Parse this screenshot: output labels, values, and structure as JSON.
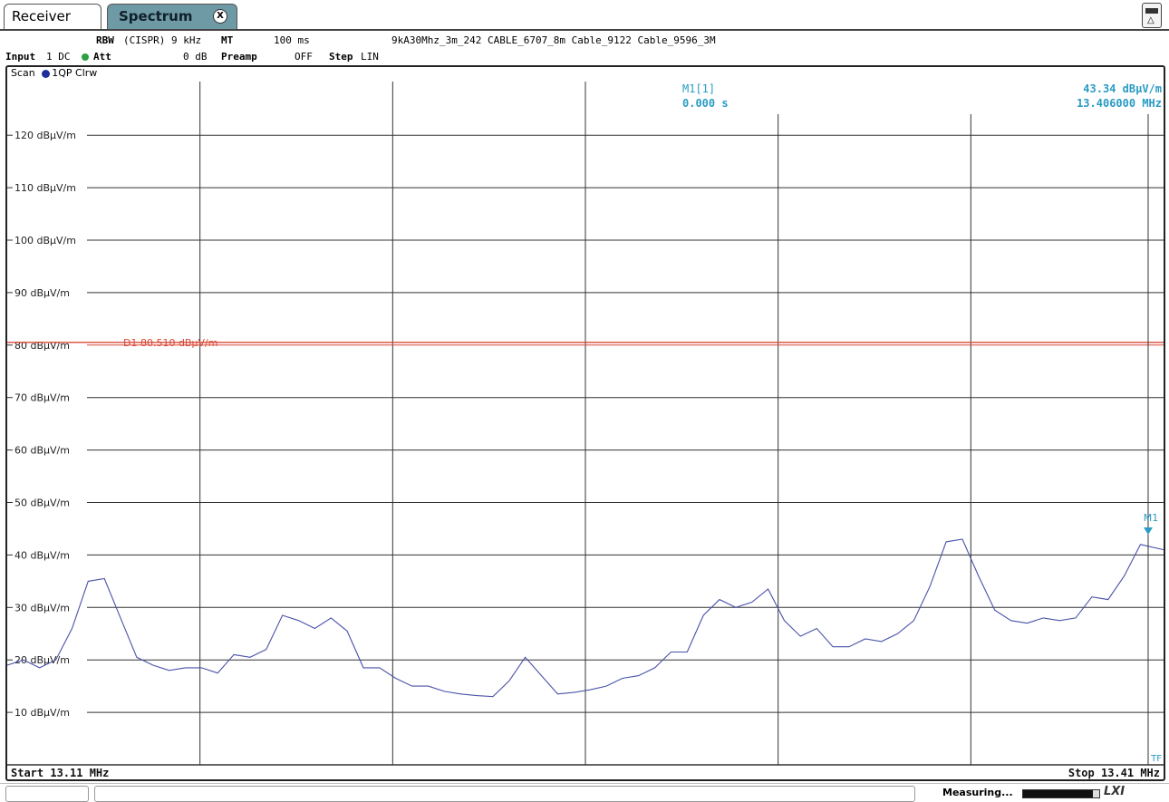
{
  "tabs": {
    "receiver": "Receiver",
    "spectrum": "Spectrum",
    "close_glyph": "X"
  },
  "params": {
    "rbw_key": "RBW",
    "rbw_value": "(CISPR) 9 kHz",
    "mt_key": "MT",
    "mt_value": "100 ms",
    "transducers": "9kA30Mhz_3m_242 CABLE_6707_8m Cable_9122 Cable_9596_3M",
    "input_key": "Input",
    "input_value": "1 DC",
    "att_key": "Att",
    "att_value": "0 dB",
    "preamp_key": "Preamp",
    "preamp_value": "OFF",
    "step_key": "Step",
    "step_value": "LIN"
  },
  "trace_label": {
    "scan": "Scan",
    "trace": "1QP Clrw"
  },
  "marker": {
    "name": "M1[1]",
    "time": "0.000 s",
    "level": "43.34 dBµV/m",
    "freq": "13.406000 MHz",
    "tag": "M1",
    "x": 13.406,
    "y": 43.34
  },
  "status": {
    "measuring": "Measuring...",
    "progress": 0.92,
    "tf": "TF"
  },
  "colors": {
    "trace": "#4a52a8",
    "display_line": "#d9493a",
    "marker": "#2a9bc4",
    "grid": "#333333"
  },
  "chart_data": {
    "type": "line",
    "xlabel_start": "Start 13.11 MHz",
    "xlabel_stop": "Stop 13.41 MHz",
    "xlim": [
      13.11,
      13.41
    ],
    "ylim": [
      0,
      130
    ],
    "y_unit": "dBµV/m",
    "yticks": [
      {
        "v": 120,
        "label": "120 dBµV/m"
      },
      {
        "v": 110,
        "label": "110 dBµV/m"
      },
      {
        "v": 100,
        "label": "100 dBµV/m"
      },
      {
        "v": 90,
        "label": "90 dBµV/m"
      },
      {
        "v": 80,
        "label": "80 dBµV/m"
      },
      {
        "v": 70,
        "label": "70 dBµV/m"
      },
      {
        "v": 60,
        "label": "60 dBµV/m"
      },
      {
        "v": 50,
        "label": "50 dBµV/m"
      },
      {
        "v": 40,
        "label": "40 dBµV/m"
      },
      {
        "v": 30,
        "label": "30 dBµV/m"
      },
      {
        "v": 20,
        "label": "20 dBµV/m"
      },
      {
        "v": 10,
        "label": "10 dBµV/m"
      }
    ],
    "display_line": {
      "value": 80.51,
      "label": "D1 80.510 dBµV/m"
    },
    "grid": true,
    "series": [
      {
        "x": [
          13.11,
          13.1142,
          13.1184,
          13.1226,
          13.1268,
          13.131,
          13.1352,
          13.1394,
          13.1436,
          13.1478,
          13.152,
          13.1562,
          13.1604,
          13.1646,
          13.1688,
          13.173,
          13.1772,
          13.1814,
          13.1856,
          13.1898,
          13.194,
          13.1982,
          13.2024,
          13.2066,
          13.2108,
          13.215,
          13.2192,
          13.2234,
          13.2276,
          13.2318,
          13.236,
          13.2402,
          13.2444,
          13.2486,
          13.2528,
          13.257,
          13.2612,
          13.2654,
          13.2696,
          13.2738,
          13.278,
          13.2822,
          13.2864,
          13.2906,
          13.2948,
          13.299,
          13.3032,
          13.3074,
          13.3116,
          13.3158,
          13.32,
          13.3242,
          13.3284,
          13.3326,
          13.3368,
          13.341,
          13.3452,
          13.3494,
          13.3536,
          13.3578,
          13.362,
          13.3662,
          13.3704,
          13.3746,
          13.3788,
          13.383,
          13.3872,
          13.3914,
          13.3956,
          13.3998,
          13.404,
          13.41
        ],
        "values": [
          19,
          20,
          18.5,
          20,
          26,
          35,
          35.5,
          28,
          20.5,
          19,
          18,
          18.5,
          18.5,
          17.5,
          21,
          20.5,
          22,
          28.5,
          27.5,
          26,
          28,
          25.5,
          18.5,
          18.5,
          16.5,
          15,
          15,
          14,
          13.5,
          13.2,
          13,
          16,
          20.5,
          17,
          13.5,
          13.8,
          14.3,
          15,
          16.5,
          17,
          18.5,
          21.5,
          21.5,
          28.5,
          31.5,
          30,
          31,
          33.5,
          27.5,
          24.5,
          26,
          22.5,
          22.5,
          24,
          23.5,
          25,
          27.5,
          34,
          42.5,
          43,
          36,
          29.5,
          27.5,
          27,
          28,
          27.5,
          28,
          32,
          31.5,
          36,
          42,
          41
        ]
      }
    ]
  }
}
